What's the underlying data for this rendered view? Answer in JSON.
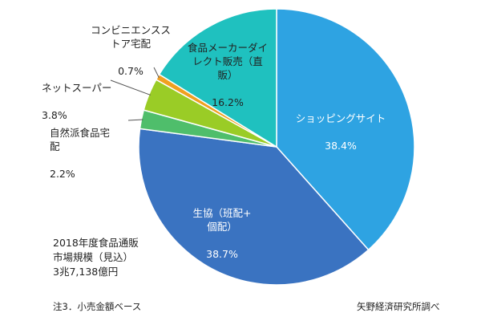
{
  "chart_data": {
    "type": "pie",
    "title": "",
    "start_angle_deg": 0,
    "direction": "clockwise",
    "slices": [
      {
        "label": "ショッピングサイト",
        "value": 38.4,
        "value_label": "38.4%",
        "color": "#2EA3E2"
      },
      {
        "label": "生協（班配+\n個配）",
        "value": 38.7,
        "value_label": "38.7%",
        "color": "#3A73C1"
      },
      {
        "label": "自然派食品宅\n配",
        "value": 2.2,
        "value_label": "2.2%",
        "color": "#4FBE6B"
      },
      {
        "label": "ネットスーパー",
        "value": 3.8,
        "value_label": "3.8%",
        "color": "#9ACC26"
      },
      {
        "label": "コンビニエンスス\nトア宅配",
        "value": 0.7,
        "value_label": "0.7%",
        "color": "#F0A020"
      },
      {
        "label": "食品メーカーダイ\nレクト販売（直\n販）",
        "value": 16.2,
        "value_label": "16.2%",
        "color": "#1FC1BF"
      }
    ]
  },
  "annotation": {
    "market_size": "2018年度食品通販\n市場規模（見込）\n3兆7,138億円"
  },
  "footer": {
    "note": "注3．小売金額ベース",
    "source": "矢野経済研究所調べ"
  }
}
